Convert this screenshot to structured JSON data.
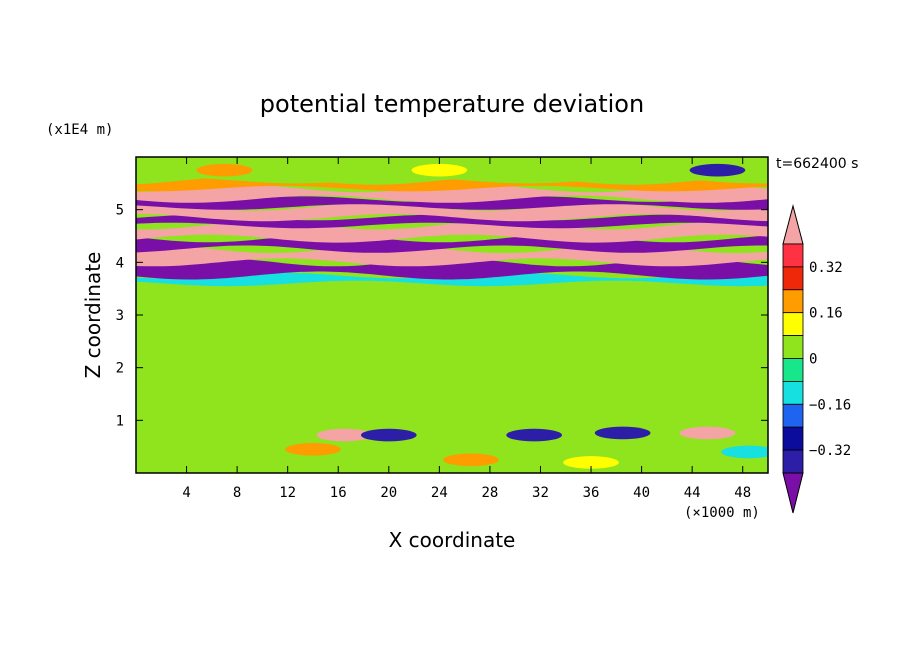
{
  "chart_data": {
    "type": "heatmap",
    "title": "potential temperature deviation",
    "xlabel": "X coordinate",
    "ylabel": "Z coordinate",
    "x_unit": "(×1000 m)",
    "y_unit": "(x1E4 m)",
    "time_label": "t=662400 s",
    "xlim": [
      0,
      50
    ],
    "ylim": [
      0,
      6
    ],
    "x_ticks": [
      "4",
      "8",
      "12",
      "16",
      "20",
      "24",
      "28",
      "32",
      "36",
      "40",
      "44",
      "48"
    ],
    "y_ticks": [
      "1",
      "2",
      "3",
      "4",
      "5"
    ],
    "colorbar_levels": [
      {
        "min": null,
        "max": -0.4,
        "color": "#7a0fa8"
      },
      {
        "min": -0.4,
        "max": -0.32,
        "color": "#2c1ea6"
      },
      {
        "min": -0.32,
        "max": -0.24,
        "color": "#0c0c9c"
      },
      {
        "min": -0.24,
        "max": -0.16,
        "color": "#1e64f0"
      },
      {
        "min": -0.16,
        "max": -0.08,
        "color": "#16e0e0"
      },
      {
        "min": -0.08,
        "max": 0,
        "color": "#18e68a"
      },
      {
        "min": 0,
        "max": 0.08,
        "color": "#8fe41e"
      },
      {
        "min": 0.08,
        "max": 0.16,
        "color": "#ffff00"
      },
      {
        "min": 0.16,
        "max": 0.24,
        "color": "#ff9c00"
      },
      {
        "min": 0.24,
        "max": 0.32,
        "color": "#f0280a"
      },
      {
        "min": 0.32,
        "max": 0.4,
        "color": "#ff3244"
      },
      {
        "min": 0.4,
        "max": null,
        "color": "#f4a4a4"
      }
    ],
    "colorbar_labels": [
      "0.32",
      "0.16",
      "0",
      "−0.16",
      "−0.32"
    ],
    "field_bands": [
      {
        "z_from": 0,
        "z_to": 0.75,
        "value": 0.04
      },
      {
        "z_from": 0.75,
        "z_to": 3.6,
        "value": 0.0
      },
      {
        "z_from": 3.6,
        "z_to": 3.75,
        "value": -0.1
      },
      {
        "z_from": 3.75,
        "z_to": 4.0,
        "value": -0.45
      },
      {
        "z_from": 4.0,
        "z_to": 4.25,
        "value": 0.45
      },
      {
        "z_from": 4.25,
        "z_to": 4.45,
        "value": -0.45
      },
      {
        "z_from": 4.45,
        "z_to": 4.7,
        "value": 0.45
      },
      {
        "z_from": 4.7,
        "z_to": 4.85,
        "value": -0.45
      },
      {
        "z_from": 4.85,
        "z_to": 5.05,
        "value": 0.45
      },
      {
        "z_from": 5.05,
        "z_to": 5.2,
        "value": -0.45
      },
      {
        "z_from": 5.2,
        "z_to": 5.4,
        "value": 0.45
      },
      {
        "z_from": 5.4,
        "z_to": 5.55,
        "value": 0.2
      },
      {
        "z_from": 5.55,
        "z_to": 6.0,
        "value": 0.05
      }
    ],
    "field_features": [
      {
        "x": 16.5,
        "z": 0.72,
        "value": 0.45
      },
      {
        "x": 45.2,
        "z": 0.76,
        "value": 0.45
      },
      {
        "x": 20,
        "z": 0.72,
        "value": -0.36
      },
      {
        "x": 31.5,
        "z": 0.72,
        "value": -0.36
      },
      {
        "x": 38.5,
        "z": 0.76,
        "value": -0.36
      },
      {
        "x": 14,
        "z": 0.45,
        "value": 0.2
      },
      {
        "x": 26.5,
        "z": 0.25,
        "value": 0.2
      },
      {
        "x": 36,
        "z": 0.2,
        "value": 0.1
      },
      {
        "x": 48.5,
        "z": 0.4,
        "value": -0.1
      },
      {
        "x": 7,
        "z": 5.75,
        "value": 0.2
      },
      {
        "x": 24,
        "z": 5.75,
        "value": 0.1
      },
      {
        "x": 46,
        "z": 5.75,
        "value": -0.36
      }
    ]
  }
}
